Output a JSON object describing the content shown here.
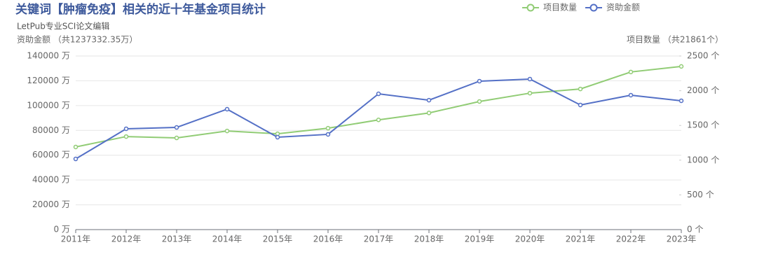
{
  "chart_data": {
    "type": "line",
    "title": "关键词【肿瘤免疫】相关的近十年基金项目统计",
    "subtitle": "LetPub专业SCI论文编辑",
    "y_label": "资助金额 （共1237332.35万）",
    "y2_label": "项目数量 （共21861个）",
    "categories": [
      "2011年",
      "2012年",
      "2013年",
      "2014年",
      "2015年",
      "2016年",
      "2017年",
      "2018年",
      "2019年",
      "2020年",
      "2021年",
      "2022年",
      "2023年"
    ],
    "series": [
      {
        "name": "项目数量",
        "color": "#91cc75",
        "axis": "y2",
        "values": [
          1190,
          1340,
          1320,
          1420,
          1380,
          1460,
          1580,
          1680,
          1845,
          1965,
          2025,
          2270,
          2350
        ]
      },
      {
        "name": "资助金额",
        "color": "#5470c6",
        "values": [
          57000,
          81300,
          82400,
          97100,
          74500,
          76800,
          109500,
          104400,
          119700,
          121400,
          100500,
          108400,
          103900
        ]
      }
    ],
    "ylim": [
      0,
      140000
    ],
    "yticks": [
      {
        "value": 0,
        "label": "0 万"
      },
      {
        "value": 20000,
        "label": "20000 万"
      },
      {
        "value": 40000,
        "label": "40000 万"
      },
      {
        "value": 60000,
        "label": "60000 万"
      },
      {
        "value": 80000,
        "label": "80000 万"
      },
      {
        "value": 100000,
        "label": "100000 万"
      },
      {
        "value": 120000,
        "label": "120000 万"
      },
      {
        "value": 140000,
        "label": "140000 万"
      }
    ],
    "y2lim": [
      0,
      2500
    ],
    "y2ticks": [
      {
        "value": 0,
        "label": "0 个"
      },
      {
        "value": 500,
        "label": "500 个"
      },
      {
        "value": 1000,
        "label": "1000 个"
      },
      {
        "value": 1500,
        "label": "1500 个"
      },
      {
        "value": 2000,
        "label": "2000 个"
      },
      {
        "value": 2500,
        "label": "2500 个"
      }
    ],
    "grid": true,
    "legend": "top-right"
  }
}
